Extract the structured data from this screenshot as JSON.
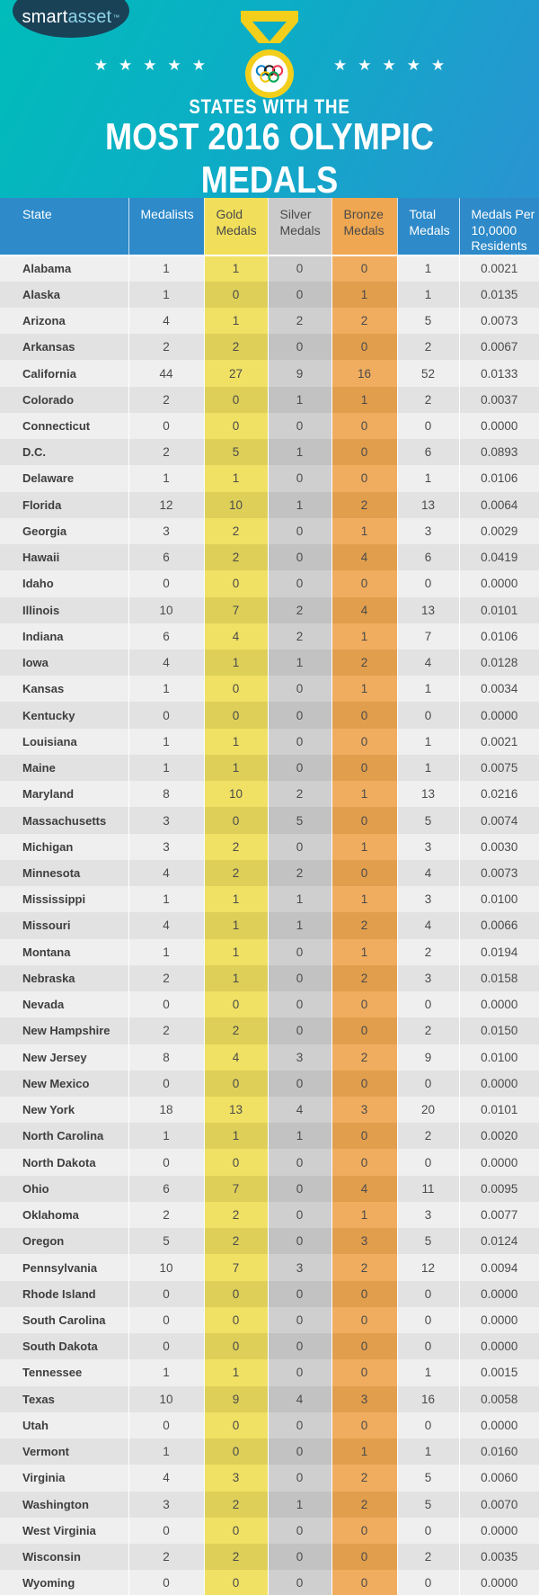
{
  "logo": {
    "part1": "smart",
    "part2": "asset",
    "tm": "™"
  },
  "icons": {
    "star": "★",
    "medal": "olympic-medal"
  },
  "header": {
    "subtitle": "STATES WITH THE",
    "title": "MOST 2016 OLYMPIC MEDALS"
  },
  "colors": {
    "banner_teal": "#00bcba",
    "banner_blue": "#2a93d2",
    "header_blue": "#2e8ac9",
    "gold_header": "#f1df5b",
    "silver_header": "#cbcbcb",
    "bronze_header": "#efa751",
    "row_light": "#f0efef",
    "row_dark": "#e3e2e2",
    "logo_navy": "#1a4257"
  },
  "chart_data": {
    "type": "table",
    "subtitle": "STATES WITH THE",
    "title": "MOST 2016 OLYMPIC MEDALS",
    "columns": [
      "State",
      "Medalists",
      "Gold Medals",
      "Silver Medals",
      "Bronze Medals",
      "Total Medals",
      "Medals Per 10,0000 Residents"
    ],
    "rows": [
      [
        "Alabama",
        "1",
        "1",
        "0",
        "0",
        "1",
        "0.0021"
      ],
      [
        "Alaska",
        "1",
        "0",
        "0",
        "1",
        "1",
        "0.0135"
      ],
      [
        "Arizona",
        "4",
        "1",
        "2",
        "2",
        "5",
        "0.0073"
      ],
      [
        "Arkansas",
        "2",
        "2",
        "0",
        "0",
        "2",
        "0.0067"
      ],
      [
        "California",
        "44",
        "27",
        "9",
        "16",
        "52",
        "0.0133"
      ],
      [
        "Colorado",
        "2",
        "0",
        "1",
        "1",
        "2",
        "0.0037"
      ],
      [
        "Connecticut",
        "0",
        "0",
        "0",
        "0",
        "0",
        "0.0000"
      ],
      [
        "D.C.",
        "2",
        "5",
        "1",
        "0",
        "6",
        "0.0893"
      ],
      [
        "Delaware",
        "1",
        "1",
        "0",
        "0",
        "1",
        "0.0106"
      ],
      [
        "Florida",
        "12",
        "10",
        "1",
        "2",
        "13",
        "0.0064"
      ],
      [
        "Georgia",
        "3",
        "2",
        "0",
        "1",
        "3",
        "0.0029"
      ],
      [
        "Hawaii",
        "6",
        "2",
        "0",
        "4",
        "6",
        "0.0419"
      ],
      [
        "Idaho",
        "0",
        "0",
        "0",
        "0",
        "0",
        "0.0000"
      ],
      [
        "Illinois",
        "10",
        "7",
        "2",
        "4",
        "13",
        "0.0101"
      ],
      [
        "Indiana",
        "6",
        "4",
        "2",
        "1",
        "7",
        "0.0106"
      ],
      [
        "Iowa",
        "4",
        "1",
        "1",
        "2",
        "4",
        "0.0128"
      ],
      [
        "Kansas",
        "1",
        "0",
        "0",
        "1",
        "1",
        "0.0034"
      ],
      [
        "Kentucky",
        "0",
        "0",
        "0",
        "0",
        "0",
        "0.0000"
      ],
      [
        "Louisiana",
        "1",
        "1",
        "0",
        "0",
        "1",
        "0.0021"
      ],
      [
        "Maine",
        "1",
        "1",
        "0",
        "0",
        "1",
        "0.0075"
      ],
      [
        "Maryland",
        "8",
        "10",
        "2",
        "1",
        "13",
        "0.0216"
      ],
      [
        "Massachusetts",
        "3",
        "0",
        "5",
        "0",
        "5",
        "0.0074"
      ],
      [
        "Michigan",
        "3",
        "2",
        "0",
        "1",
        "3",
        "0.0030"
      ],
      [
        "Minnesota",
        "4",
        "2",
        "2",
        "0",
        "4",
        "0.0073"
      ],
      [
        "Mississippi",
        "1",
        "1",
        "1",
        "1",
        "3",
        "0.0100"
      ],
      [
        "Missouri",
        "4",
        "1",
        "1",
        "2",
        "4",
        "0.0066"
      ],
      [
        "Montana",
        "1",
        "1",
        "0",
        "1",
        "2",
        "0.0194"
      ],
      [
        "Nebraska",
        "2",
        "1",
        "0",
        "2",
        "3",
        "0.0158"
      ],
      [
        "Nevada",
        "0",
        "0",
        "0",
        "0",
        "0",
        "0.0000"
      ],
      [
        "New Hampshire",
        "2",
        "2",
        "0",
        "0",
        "2",
        "0.0150"
      ],
      [
        "New Jersey",
        "8",
        "4",
        "3",
        "2",
        "9",
        "0.0100"
      ],
      [
        "New Mexico",
        "0",
        "0",
        "0",
        "0",
        "0",
        "0.0000"
      ],
      [
        "New York",
        "18",
        "13",
        "4",
        "3",
        "20",
        "0.0101"
      ],
      [
        "North Carolina",
        "1",
        "1",
        "1",
        "0",
        "2",
        "0.0020"
      ],
      [
        "North Dakota",
        "0",
        "0",
        "0",
        "0",
        "0",
        "0.0000"
      ],
      [
        "Ohio",
        "6",
        "7",
        "0",
        "4",
        "11",
        "0.0095"
      ],
      [
        "Oklahoma",
        "2",
        "2",
        "0",
        "1",
        "3",
        "0.0077"
      ],
      [
        "Oregon",
        "5",
        "2",
        "0",
        "3",
        "5",
        "0.0124"
      ],
      [
        "Pennsylvania",
        "10",
        "7",
        "3",
        "2",
        "12",
        "0.0094"
      ],
      [
        "Rhode Island",
        "0",
        "0",
        "0",
        "0",
        "0",
        "0.0000"
      ],
      [
        "South Carolina",
        "0",
        "0",
        "0",
        "0",
        "0",
        "0.0000"
      ],
      [
        "South Dakota",
        "0",
        "0",
        "0",
        "0",
        "0",
        "0.0000"
      ],
      [
        "Tennessee",
        "1",
        "1",
        "0",
        "0",
        "1",
        "0.0015"
      ],
      [
        "Texas",
        "10",
        "9",
        "4",
        "3",
        "16",
        "0.0058"
      ],
      [
        "Utah",
        "0",
        "0",
        "0",
        "0",
        "0",
        "0.0000"
      ],
      [
        "Vermont",
        "1",
        "0",
        "0",
        "1",
        "1",
        "0.0160"
      ],
      [
        "Virginia",
        "4",
        "3",
        "0",
        "2",
        "5",
        "0.0060"
      ],
      [
        "Washington",
        "3",
        "2",
        "1",
        "2",
        "5",
        "0.0070"
      ],
      [
        "West Virginia",
        "0",
        "0",
        "0",
        "0",
        "0",
        "0.0000"
      ],
      [
        "Wisconsin",
        "2",
        "2",
        "0",
        "0",
        "2",
        "0.0035"
      ],
      [
        "Wyoming",
        "0",
        "0",
        "0",
        "0",
        "0",
        "0.0000"
      ]
    ]
  }
}
